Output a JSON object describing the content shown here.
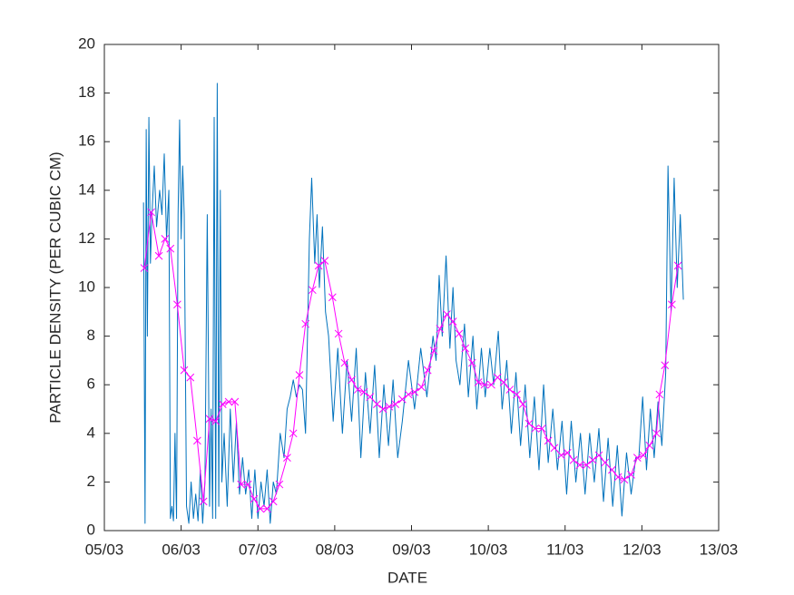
{
  "chart_data": {
    "type": "line",
    "xlabel": "DATE",
    "ylabel": "PARTICLE  DENSITY (PER CUBIC CM)",
    "xlim": [
      5,
      13
    ],
    "xticks": [
      {
        "value": 5,
        "label": "05/03"
      },
      {
        "value": 6,
        "label": "06/03"
      },
      {
        "value": 7,
        "label": "07/03"
      },
      {
        "value": 8,
        "label": "08/03"
      },
      {
        "value": 9,
        "label": "09/03"
      },
      {
        "value": 10,
        "label": "10/03"
      },
      {
        "value": 11,
        "label": "11/03"
      },
      {
        "value": 12,
        "label": "12/03"
      },
      {
        "value": 13,
        "label": "13/03"
      }
    ],
    "ylim": [
      0,
      20
    ],
    "yticks": [
      0,
      2,
      4,
      6,
      8,
      10,
      12,
      14,
      16,
      18,
      20
    ],
    "series": [
      {
        "color": "#0072bd",
        "marker": "none",
        "x": [
          5.51,
          5.53,
          5.545,
          5.56,
          5.58,
          5.6,
          5.62,
          5.65,
          5.68,
          5.72,
          5.75,
          5.78,
          5.81,
          5.84,
          5.86,
          5.88,
          5.9,
          5.92,
          5.94,
          5.96,
          5.98,
          6.0,
          6.02,
          6.04,
          6.07,
          6.1,
          6.13,
          6.16,
          6.19,
          6.22,
          6.25,
          6.28,
          6.31,
          6.34,
          6.37,
          6.39,
          6.41,
          6.43,
          6.45,
          6.47,
          6.49,
          6.51,
          6.53,
          6.56,
          6.6,
          6.64,
          6.68,
          6.72,
          6.76,
          6.8,
          6.84,
          6.88,
          6.92,
          6.96,
          7.0,
          7.04,
          7.08,
          7.12,
          7.16,
          7.2,
          7.24,
          7.29,
          7.34,
          7.38,
          7.42,
          7.46,
          7.5,
          7.54,
          7.58,
          7.62,
          7.67,
          7.7,
          7.74,
          7.77,
          7.8,
          7.84,
          7.88,
          7.92,
          7.98,
          8.04,
          8.1,
          8.16,
          8.22,
          8.28,
          8.34,
          8.4,
          8.46,
          8.52,
          8.58,
          8.64,
          8.7,
          8.76,
          8.82,
          8.88,
          8.96,
          9.04,
          9.12,
          9.2,
          9.28,
          9.32,
          9.36,
          9.4,
          9.45,
          9.5,
          9.54,
          9.58,
          9.63,
          9.69,
          9.74,
          9.8,
          9.85,
          9.91,
          9.96,
          10.02,
          10.07,
          10.13,
          10.18,
          10.24,
          10.3,
          10.36,
          10.42,
          10.48,
          10.54,
          10.6,
          10.66,
          10.72,
          10.78,
          10.84,
          10.9,
          10.96,
          11.02,
          11.08,
          11.14,
          11.2,
          11.26,
          11.32,
          11.38,
          11.44,
          11.5,
          11.56,
          11.62,
          11.68,
          11.74,
          11.8,
          11.86,
          11.92,
          11.96,
          12.01,
          12.06,
          12.11,
          12.16,
          12.21,
          12.26,
          12.31,
          12.34,
          12.38,
          12.42,
          12.46,
          12.5,
          12.54
        ],
        "values": [
          13.5,
          0.3,
          16.5,
          8,
          17,
          11,
          13,
          15,
          12.5,
          14,
          13,
          15.5,
          12,
          14,
          0.5,
          1,
          0.4,
          4,
          0.5,
          13,
          16.9,
          12,
          15,
          13,
          1,
          0.3,
          2,
          0.5,
          1.5,
          0.4,
          2.5,
          0.3,
          2,
          13,
          1,
          5,
          0.5,
          17,
          0.5,
          18.4,
          1,
          14,
          2,
          4,
          1,
          5,
          2,
          4.5,
          1.5,
          3,
          1.5,
          2.5,
          0.5,
          2.5,
          0.5,
          2,
          1,
          2.5,
          0.3,
          2,
          1.5,
          4,
          3,
          5,
          5.5,
          6.2,
          5.5,
          6,
          5.8,
          4,
          12,
          14.5,
          11,
          13,
          10,
          12.5,
          9,
          8,
          4.5,
          7.5,
          4,
          7,
          4.5,
          7.5,
          3,
          6.5,
          4,
          6.8,
          3,
          6,
          3.5,
          6.2,
          3,
          4.5,
          7,
          5,
          7.5,
          5.5,
          8,
          7,
          10.5,
          8,
          11.3,
          7.5,
          10,
          7,
          6,
          8.5,
          5.5,
          8,
          5,
          7.5,
          5.5,
          7.5,
          6,
          8.2,
          5,
          7,
          4,
          6.5,
          3.5,
          6,
          3,
          5.5,
          2.5,
          6,
          2.8,
          5,
          2.5,
          4.5,
          1.5,
          4.5,
          2,
          4,
          1.5,
          4,
          2,
          4.2,
          1.2,
          3.8,
          1,
          3.5,
          0.6,
          3.2,
          1.5,
          3,
          3,
          5.5,
          2.5,
          5,
          3,
          5.3,
          3.5,
          6.5,
          15,
          9,
          14.5,
          10,
          13,
          9.5
        ]
      },
      {
        "color": "#ff00ff",
        "marker": "x",
        "x": [
          5.52,
          5.61,
          5.71,
          5.79,
          5.86,
          5.95,
          6.04,
          6.12,
          6.21,
          6.29,
          6.37,
          6.45,
          6.54,
          6.62,
          6.7,
          6.78,
          6.87,
          6.95,
          7.03,
          7.12,
          7.2,
          7.28,
          7.38,
          7.46,
          7.54,
          7.62,
          7.71,
          7.79,
          7.87,
          7.97,
          8.05,
          8.13,
          8.22,
          8.3,
          8.38,
          8.46,
          8.55,
          8.63,
          8.71,
          8.79,
          8.88,
          8.96,
          9.04,
          9.13,
          9.21,
          9.29,
          9.37,
          9.46,
          9.54,
          9.62,
          9.7,
          9.79,
          9.87,
          9.95,
          10.04,
          10.12,
          10.2,
          10.28,
          10.37,
          10.45,
          10.53,
          10.61,
          10.7,
          10.78,
          10.86,
          10.95,
          11.03,
          11.11,
          11.19,
          11.28,
          11.36,
          11.44,
          11.52,
          11.61,
          11.69,
          11.77,
          11.86,
          11.94,
          12.02,
          12.1,
          12.19,
          12.23,
          12.3,
          12.39,
          12.47
        ],
        "values": [
          10.8,
          13.1,
          11.3,
          12.0,
          11.6,
          9.3,
          6.6,
          6.3,
          3.7,
          1.2,
          4.6,
          4.5,
          5.2,
          5.3,
          5.3,
          1.9,
          1.9,
          1.3,
          0.9,
          0.9,
          1.2,
          1.9,
          3.0,
          4.0,
          6.4,
          8.5,
          9.9,
          10.9,
          11.1,
          9.6,
          8.1,
          6.9,
          6.2,
          5.8,
          5.7,
          5.5,
          5.2,
          5.0,
          5.1,
          5.2,
          5.4,
          5.6,
          5.7,
          5.9,
          6.6,
          7.4,
          8.3,
          8.9,
          8.6,
          8.1,
          7.5,
          6.9,
          6.1,
          6.0,
          6.0,
          6.3,
          6.1,
          5.8,
          5.6,
          5.2,
          4.4,
          4.2,
          4.2,
          3.7,
          3.4,
          3.1,
          3.2,
          2.9,
          2.7,
          2.7,
          2.9,
          3.1,
          2.8,
          2.5,
          2.2,
          2.1,
          2.3,
          3.0,
          3.1,
          3.5,
          4.0,
          5.6,
          6.8,
          9.3,
          10.9
        ]
      }
    ]
  }
}
